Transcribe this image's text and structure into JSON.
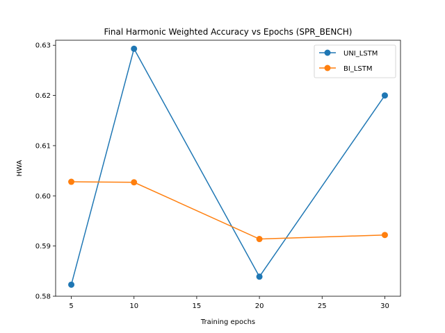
{
  "chart_data": {
    "type": "line",
    "title": "Final Harmonic Weighted Accuracy vs Epochs (SPR_BENCH)",
    "xlabel": "Training epochs",
    "ylabel": "HWA",
    "x": [
      5,
      10,
      20,
      30
    ],
    "xlim": [
      3.75,
      31.25
    ],
    "ylim": [
      0.58,
      0.631
    ],
    "xticks": [
      5,
      10,
      15,
      20,
      25,
      30
    ],
    "yticks": [
      0.58,
      0.59,
      0.6,
      0.61,
      0.62,
      0.63
    ],
    "yticklabels": [
      "0.58",
      "0.59",
      "0.60",
      "0.61",
      "0.62",
      "0.63"
    ],
    "grid": false,
    "legend_position": "top-right",
    "series": [
      {
        "name": "UNI_LSTM",
        "color": "#1f77b4",
        "marker": "circle",
        "values": [
          0.5823,
          0.6293,
          0.5839,
          0.62
        ]
      },
      {
        "name": "BI_LSTM",
        "color": "#ff7f0e",
        "marker": "circle",
        "values": [
          0.6028,
          0.6027,
          0.5914,
          0.5922
        ]
      }
    ]
  }
}
